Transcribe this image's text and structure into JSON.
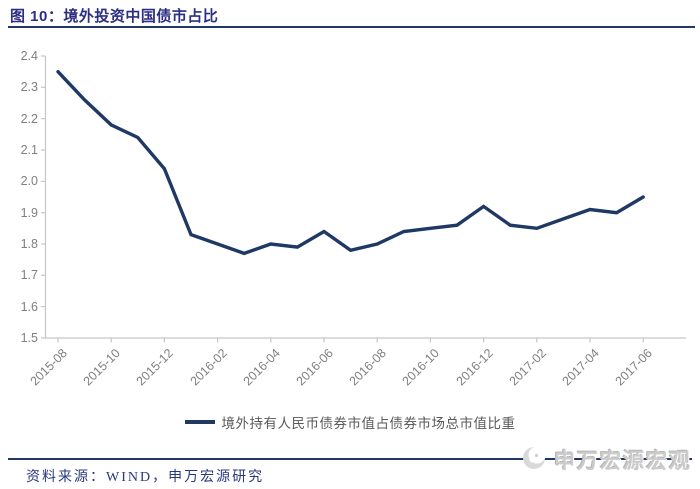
{
  "header": {
    "title": "图 10：境外投资中国债市占比"
  },
  "chart_data": {
    "type": "line",
    "title": "境外投资中国债市占比",
    "x": [
      "2015-08",
      "2015-09",
      "2015-10",
      "2015-11",
      "2015-12",
      "2016-01",
      "2016-02",
      "2016-03",
      "2016-04",
      "2016-05",
      "2016-06",
      "2016-07",
      "2016-08",
      "2016-09",
      "2016-10",
      "2016-11",
      "2016-12",
      "2017-01",
      "2017-02",
      "2017-03",
      "2017-04",
      "2017-05",
      "2017-06"
    ],
    "series": [
      {
        "name": "境外持有人民币债券市值占债券市场总市值比重",
        "values": [
          2.35,
          2.26,
          2.18,
          2.14,
          2.04,
          1.83,
          1.8,
          1.77,
          1.8,
          1.79,
          1.84,
          1.78,
          1.8,
          1.84,
          1.85,
          1.86,
          1.92,
          1.86,
          1.85,
          1.88,
          1.91,
          1.9,
          1.95
        ],
        "color": "#1F3864"
      }
    ],
    "ylim": [
      1.5,
      2.4
    ],
    "ytick_labels": [
      "2.4",
      "2.3",
      "2.2",
      "2.1",
      "2.0",
      "1.9",
      "1.8",
      "1.7",
      "1.6",
      "1.5"
    ],
    "xtick_labels": [
      "2015-08",
      "2015-10",
      "2015-12",
      "2016-02",
      "2016-04",
      "2016-06",
      "2016-08",
      "2016-10",
      "2016-12",
      "2017-02",
      "2017-04",
      "2017-06"
    ],
    "grid": false,
    "legend_position": "bottom",
    "axis_color": "#C6C6C6"
  },
  "footer": {
    "source": "资料来源：WIND，申万宏源研究"
  },
  "watermark": {
    "text": "申万宏源宏观"
  },
  "colors": {
    "accent": "#1F3864",
    "title_text": "#2B2E83",
    "axis_text": "#7F7F7F",
    "legend_text": "#595959",
    "source_text": "#27397E",
    "watermark_gray": "#cbcbcb"
  }
}
